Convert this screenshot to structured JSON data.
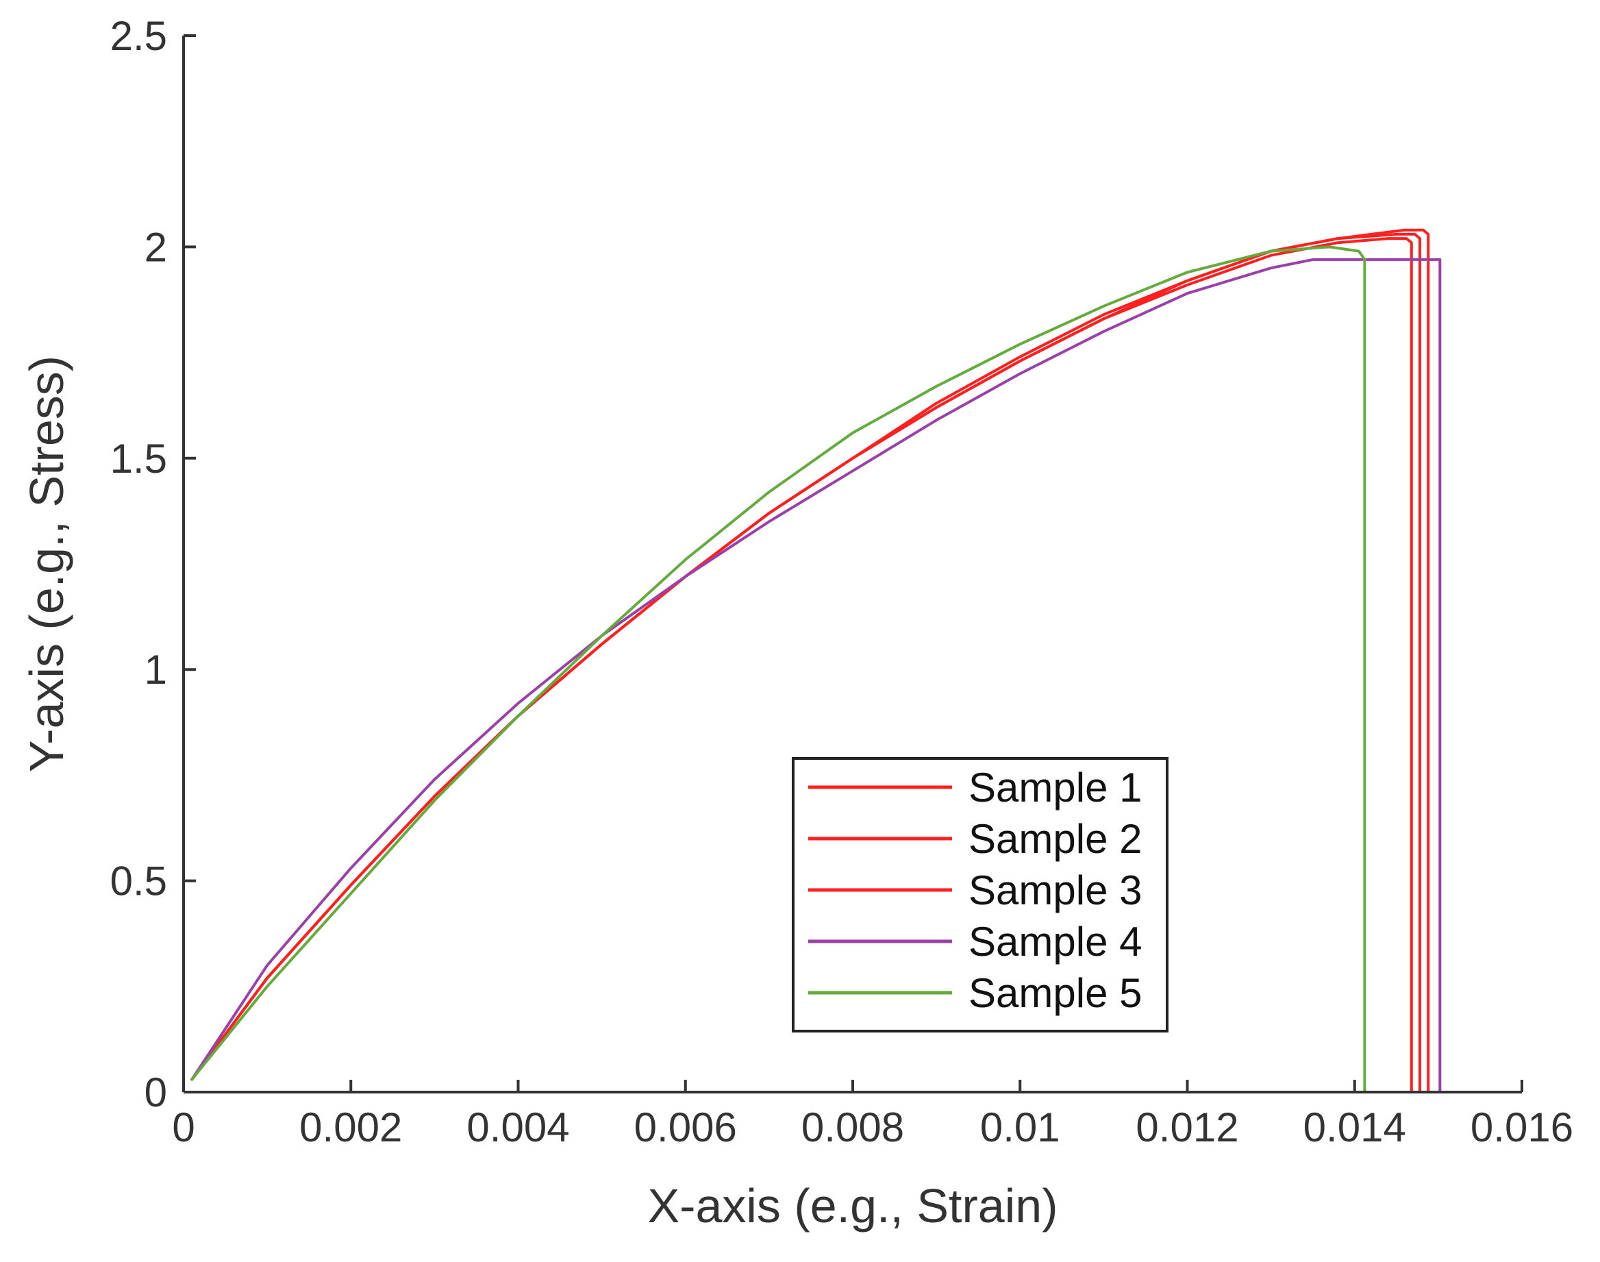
{
  "chart_data": {
    "type": "line",
    "title": "",
    "xlabel": "X-axis (e.g., Strain)",
    "ylabel": "Y-axis (e.g., Stress)",
    "xlim": [
      0,
      0.016
    ],
    "ylim": [
      0,
      2.5
    ],
    "xticks": [
      0,
      0.002,
      0.004,
      0.006,
      0.008,
      0.01,
      0.012,
      0.014,
      0.016
    ],
    "xtick_labels": [
      "0",
      "0.002",
      "0.004",
      "0.006",
      "0.008",
      "0.01",
      "0.012",
      "0.014",
      "0.016"
    ],
    "yticks": [
      0,
      0.5,
      1,
      1.5,
      2,
      2.5
    ],
    "ytick_labels": [
      "0",
      "0.5",
      "1",
      "1.5",
      "2",
      "2.5"
    ],
    "grid": false,
    "legend_position": "lower-right",
    "series": [
      {
        "name": "Sample 1",
        "color": "#ff2020",
        "x": [
          0.0001,
          0.001,
          0.002,
          0.003,
          0.004,
          0.005,
          0.006,
          0.007,
          0.008,
          0.009,
          0.01,
          0.011,
          0.012,
          0.013,
          0.0138,
          0.0144,
          0.01462,
          0.01468,
          0.01468,
          0.0142,
          0.0001
        ],
        "y": [
          0.03,
          0.27,
          0.49,
          0.7,
          0.89,
          1.06,
          1.22,
          1.37,
          1.5,
          1.62,
          1.73,
          1.83,
          1.91,
          1.98,
          2.01,
          2.02,
          2.02,
          2.01,
          0.0,
          0.0,
          0.0
        ]
      },
      {
        "name": "Sample 2",
        "color": "#ff2020",
        "x": [
          0.0001,
          0.001,
          0.002,
          0.003,
          0.004,
          0.005,
          0.006,
          0.007,
          0.008,
          0.009,
          0.01,
          0.011,
          0.012,
          0.013,
          0.0138,
          0.0145,
          0.01472,
          0.01478,
          0.01478,
          0.0142,
          0.0001
        ],
        "y": [
          0.03,
          0.27,
          0.49,
          0.7,
          0.89,
          1.06,
          1.22,
          1.37,
          1.5,
          1.62,
          1.73,
          1.83,
          1.92,
          1.99,
          2.02,
          2.03,
          2.03,
          2.02,
          0.0,
          0.0,
          0.0
        ]
      },
      {
        "name": "Sample 3",
        "color": "#ff2020",
        "x": [
          0.0001,
          0.001,
          0.002,
          0.003,
          0.004,
          0.005,
          0.006,
          0.007,
          0.008,
          0.009,
          0.01,
          0.011,
          0.012,
          0.013,
          0.0138,
          0.0146,
          0.01482,
          0.01488,
          0.01488,
          0.0142,
          0.0001
        ],
        "y": [
          0.03,
          0.27,
          0.49,
          0.7,
          0.89,
          1.06,
          1.22,
          1.37,
          1.5,
          1.63,
          1.74,
          1.84,
          1.92,
          1.99,
          2.02,
          2.04,
          2.04,
          2.03,
          0.0,
          0.0,
          0.0
        ]
      },
      {
        "name": "Sample 4",
        "color": "#9b40a8",
        "x": [
          0.0001,
          0.001,
          0.002,
          0.003,
          0.004,
          0.005,
          0.006,
          0.007,
          0.008,
          0.009,
          0.01,
          0.011,
          0.012,
          0.013,
          0.0135,
          0.014,
          0.0145,
          0.01502,
          0.01502,
          0.0142,
          0.0001
        ],
        "y": [
          0.03,
          0.3,
          0.53,
          0.74,
          0.92,
          1.08,
          1.22,
          1.35,
          1.47,
          1.59,
          1.7,
          1.8,
          1.89,
          1.95,
          1.97,
          1.97,
          1.97,
          1.97,
          0.0,
          0.0,
          0.0
        ]
      },
      {
        "name": "Sample 5",
        "color": "#64aa3c",
        "x": [
          0.0001,
          0.001,
          0.002,
          0.003,
          0.004,
          0.005,
          0.006,
          0.007,
          0.008,
          0.009,
          0.01,
          0.011,
          0.012,
          0.013,
          0.0137,
          0.01405,
          0.01412,
          0.01412,
          0.0001
        ],
        "y": [
          0.03,
          0.25,
          0.47,
          0.69,
          0.89,
          1.08,
          1.26,
          1.42,
          1.56,
          1.67,
          1.77,
          1.86,
          1.94,
          1.99,
          2.0,
          1.99,
          1.97,
          0.0,
          0.0
        ]
      }
    ]
  }
}
